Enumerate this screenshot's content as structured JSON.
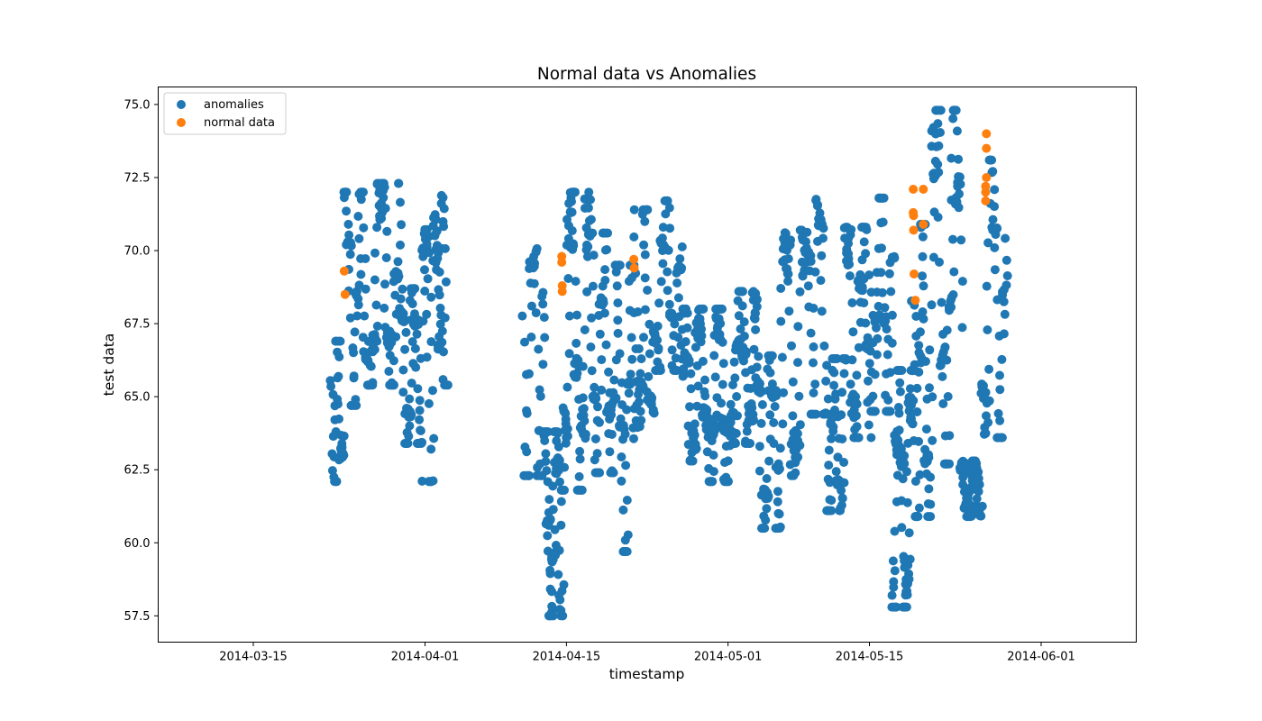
{
  "chart_data": {
    "type": "scatter",
    "title": "Normal data vs Anomalies",
    "xlabel": "timestamp",
    "ylabel": "test data",
    "x_ticks": [
      "2014-03-15",
      "2014-04-01",
      "2014-04-15",
      "2014-05-01",
      "2014-05-15",
      "2014-06-01"
    ],
    "y_ticks": [
      "57.5",
      "60.0",
      "62.5",
      "65.0",
      "67.5",
      "70.0",
      "72.5",
      "75.0"
    ],
    "xlim": [
      "2014-03-05T14:00",
      "2014-06-10T10:00"
    ],
    "ylim": [
      56.6,
      75.6
    ],
    "grid": false,
    "legend_position": "top-left",
    "series": [
      {
        "name": "anomalies",
        "color": "#1f77b4",
        "clusters": [
          {
            "start": "2014-03-22T19:00",
            "end": "2014-03-23T22:00",
            "low": 62.1,
            "high": 66.9,
            "n": 40,
            "phase": 0.4
          },
          {
            "start": "2014-03-24T00:00",
            "end": "2014-03-26T08:00",
            "low": 64.7,
            "high": 72.0,
            "n": 60,
            "phase": 0.1
          },
          {
            "start": "2014-03-26T08:00",
            "end": "2014-03-29T14:00",
            "low": 65.4,
            "high": 72.3,
            "n": 85,
            "phase": 0.6
          },
          {
            "start": "2014-03-29T14:00",
            "end": "2014-03-31T14:00",
            "low": 63.4,
            "high": 68.7,
            "n": 70,
            "phase": 0.2
          },
          {
            "start": "2014-03-31T14:00",
            "end": "2014-04-02T05:00",
            "low": 62.1,
            "high": 72.0,
            "n": 45,
            "phase": 0.8
          },
          {
            "start": "2014-04-02T05:00",
            "end": "2014-04-03T02:00",
            "low": 65.4,
            "high": 72.3,
            "n": 30,
            "phase": 0.3
          },
          {
            "start": "2014-04-10T18:00",
            "end": "2014-04-12T20:00",
            "low": 62.3,
            "high": 71.0,
            "n": 50,
            "phase": 0.5
          },
          {
            "start": "2014-04-12T20:00",
            "end": "2014-04-14T14:00",
            "low": 57.5,
            "high": 63.8,
            "n": 80,
            "phase": 0.15
          },
          {
            "start": "2014-04-14T14:00",
            "end": "2014-04-17T08:00",
            "low": 61.8,
            "high": 72.0,
            "n": 95,
            "phase": 0.7
          },
          {
            "start": "2014-04-17T08:00",
            "end": "2014-04-19T14:00",
            "low": 62.4,
            "high": 70.6,
            "n": 70,
            "phase": 0.25
          },
          {
            "start": "2014-04-19T14:00",
            "end": "2014-04-21T20:00",
            "low": 59.7,
            "high": 69.5,
            "n": 70,
            "phase": 0.9
          },
          {
            "start": "2014-04-21T20:00",
            "end": "2014-04-23T14:00",
            "low": 63.6,
            "high": 71.4,
            "n": 50,
            "phase": 0.35
          },
          {
            "start": "2014-04-23T14:00",
            "end": "2014-04-26T10:00",
            "low": 65.9,
            "high": 71.7,
            "n": 75,
            "phase": 0.55
          },
          {
            "start": "2014-04-26T10:00",
            "end": "2014-04-28T20:00",
            "low": 62.8,
            "high": 68.0,
            "n": 85,
            "phase": 0.05
          },
          {
            "start": "2014-04-28T20:00",
            "end": "2014-05-01T08:00",
            "low": 62.1,
            "high": 68.0,
            "n": 95,
            "phase": 0.45
          },
          {
            "start": "2014-05-01T08:00",
            "end": "2014-05-03T20:00",
            "low": 63.4,
            "high": 68.6,
            "n": 85,
            "phase": 0.65
          },
          {
            "start": "2014-05-03T20:00",
            "end": "2014-05-06T02:00",
            "low": 60.5,
            "high": 66.4,
            "n": 70,
            "phase": 0.2
          },
          {
            "start": "2014-05-06T02:00",
            "end": "2014-05-08T20:00",
            "low": 62.3,
            "high": 70.7,
            "n": 70,
            "phase": 0.85
          },
          {
            "start": "2014-05-08T20:00",
            "end": "2014-05-10T20:00",
            "low": 64.4,
            "high": 72.4,
            "n": 50,
            "phase": 0.3
          },
          {
            "start": "2014-05-10T20:00",
            "end": "2014-05-12T14:00",
            "low": 61.1,
            "high": 66.3,
            "n": 60,
            "phase": 0.6
          },
          {
            "start": "2014-05-12T14:00",
            "end": "2014-05-15T02:00",
            "low": 63.6,
            "high": 70.8,
            "n": 80,
            "phase": 0.1
          },
          {
            "start": "2014-05-15T02:00",
            "end": "2014-05-17T08:00",
            "low": 64.5,
            "high": 71.8,
            "n": 65,
            "phase": 0.5
          },
          {
            "start": "2014-05-17T08:00",
            "end": "2014-05-19T08:00",
            "low": 57.8,
            "high": 65.9,
            "n": 90,
            "phase": 0.75
          },
          {
            "start": "2014-05-19T08:00",
            "end": "2014-05-21T02:00",
            "low": 60.9,
            "high": 70.9,
            "n": 60,
            "phase": 0.4
          },
          {
            "start": "2014-05-21T02:00",
            "end": "2014-05-24T02:00",
            "low": 62.7,
            "high": 74.8,
            "n": 85,
            "phase": 0.95
          },
          {
            "start": "2014-05-24T02:00",
            "end": "2014-05-26T02:00",
            "low": 60.9,
            "high": 62.8,
            "n": 90,
            "phase": 0.2
          },
          {
            "start": "2014-05-26T02:00",
            "end": "2014-05-28T14:00",
            "low": 63.6,
            "high": 73.1,
            "n": 60,
            "phase": 0.55
          }
        ]
      },
      {
        "name": "normal data",
        "color": "#ff7f0e",
        "points": [
          [
            "2014-03-24T00:00",
            69.3
          ],
          [
            "2014-03-24T02:00",
            68.5
          ],
          [
            "2014-04-14T13:00",
            69.8
          ],
          [
            "2014-04-14T13:00",
            69.6
          ],
          [
            "2014-04-14T14:00",
            68.8
          ],
          [
            "2014-04-14T14:00",
            68.6
          ],
          [
            "2014-04-21T16:00",
            69.7
          ],
          [
            "2014-04-21T17:00",
            69.4
          ],
          [
            "2014-05-19T08:00",
            72.1
          ],
          [
            "2014-05-19T08:00",
            71.3
          ],
          [
            "2014-05-19T09:00",
            71.2
          ],
          [
            "2014-05-19T09:00",
            70.7
          ],
          [
            "2014-05-19T10:00",
            69.2
          ],
          [
            "2014-05-19T13:00",
            68.3
          ],
          [
            "2014-05-20T08:00",
            72.1
          ],
          [
            "2014-05-20T08:00",
            70.9
          ],
          [
            "2014-05-26T14:00",
            74.0
          ],
          [
            "2014-05-26T14:00",
            73.5
          ],
          [
            "2014-05-26T14:00",
            72.5
          ],
          [
            "2014-05-26T12:00",
            72.2
          ],
          [
            "2014-05-26T12:00",
            72.0
          ],
          [
            "2014-05-26T12:00",
            71.7
          ]
        ]
      }
    ]
  }
}
